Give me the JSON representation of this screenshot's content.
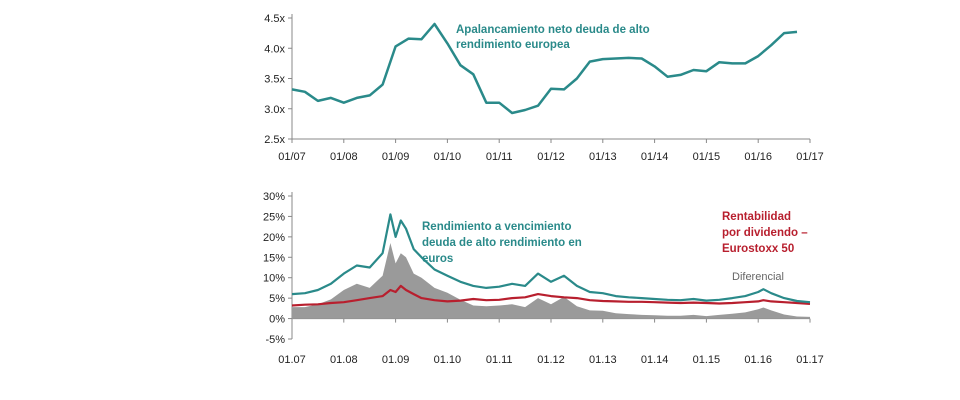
{
  "chart_data": [
    {
      "type": "line",
      "title": "",
      "xlabel": "",
      "ylabel": "",
      "x_tick_labels": [
        "01/07",
        "01/08",
        "01/09",
        "01/10",
        "01/11",
        "01/12",
        "01/13",
        "01/14",
        "01/15",
        "01/16",
        "01/17"
      ],
      "y_tick_labels": [
        "2.5x",
        "3.0x",
        "3.5x",
        "4.0x",
        "4.5x"
      ],
      "ylim": [
        2.5,
        4.5
      ],
      "xlim": [
        2007.0,
        2017.0
      ],
      "grid": false,
      "annotation": [
        "Apalancamiento neto deuda de alto",
        "rendimiento europea"
      ],
      "series": [
        {
          "color": "#2a8a8a",
          "x": [
            2007.0,
            2007.25,
            2007.5,
            2007.75,
            2008.0,
            2008.25,
            2008.5,
            2008.75,
            2009.0,
            2009.25,
            2009.5,
            2009.75,
            2010.0,
            2010.25,
            2010.5,
            2010.75,
            2011.0,
            2011.25,
            2011.5,
            2011.75,
            2012.0,
            2012.25,
            2012.5,
            2012.75,
            2013.0,
            2013.25,
            2013.5,
            2013.75,
            2014.0,
            2014.25,
            2014.5,
            2014.75,
            2015.0,
            2015.25,
            2015.5,
            2015.75,
            2016.0,
            2016.25,
            2016.5,
            2016.75
          ],
          "values": [
            3.32,
            3.28,
            3.13,
            3.18,
            3.1,
            3.18,
            3.22,
            3.4,
            4.03,
            4.16,
            4.15,
            4.4,
            4.08,
            3.72,
            3.57,
            3.1,
            3.1,
            2.93,
            2.98,
            3.05,
            3.33,
            3.32,
            3.5,
            3.78,
            3.82,
            3.83,
            3.84,
            3.83,
            3.7,
            3.53,
            3.56,
            3.64,
            3.62,
            3.77,
            3.75,
            3.75,
            3.87,
            4.05,
            4.25,
            4.27
          ]
        }
      ]
    },
    {
      "type": "area",
      "title": "",
      "xlabel": "",
      "ylabel": "",
      "x_tick_labels": [
        "01.07",
        "01.08",
        "01.09",
        "01.10",
        "01.11",
        "01.12",
        "01.13",
        "01.14",
        "01.15",
        "01.16",
        "01.17"
      ],
      "y_tick_labels": [
        "-5%",
        "0%",
        "5%",
        "10%",
        "15%",
        "20%",
        "25%",
        "30%"
      ],
      "ylim": [
        -5,
        30
      ],
      "xlim": [
        2007.0,
        2017.0
      ],
      "grid": false,
      "x": [
        2007.0,
        2007.25,
        2007.5,
        2007.75,
        2008.0,
        2008.25,
        2008.5,
        2008.75,
        2008.9,
        2009.0,
        2009.1,
        2009.2,
        2009.35,
        2009.5,
        2009.75,
        2010.0,
        2010.25,
        2010.5,
        2010.75,
        2011.0,
        2011.25,
        2011.5,
        2011.75,
        2012.0,
        2012.25,
        2012.5,
        2012.75,
        2013.0,
        2013.25,
        2013.5,
        2013.75,
        2014.0,
        2014.25,
        2014.5,
        2014.75,
        2015.0,
        2015.25,
        2015.5,
        2015.75,
        2016.0,
        2016.1,
        2016.25,
        2016.5,
        2016.75,
        2017.0
      ],
      "series": [
        {
          "name": "Rendimiento a vencimiento deuda de alto rendimiento en euros",
          "color": "#2a8a8a",
          "values": [
            6,
            6.2,
            7,
            8.5,
            11,
            13,
            12.5,
            16,
            25.5,
            20,
            24,
            22,
            17,
            15,
            12,
            10.5,
            9,
            8,
            7.5,
            7.8,
            8.5,
            8,
            11,
            9,
            10.5,
            8,
            6.5,
            6.2,
            5.5,
            5.2,
            5,
            4.8,
            4.6,
            4.5,
            4.8,
            4.4,
            4.6,
            5,
            5.5,
            6.5,
            7.2,
            6.2,
            5,
            4.3,
            4
          ]
        },
        {
          "name": "Rentabilidad por dividendo – Eurostoxx 50",
          "color": "#b81f2e",
          "values": [
            3.2,
            3.4,
            3.5,
            3.8,
            4,
            4.5,
            5,
            5.5,
            7,
            6.5,
            8,
            7,
            6,
            5,
            4.5,
            4.2,
            4.4,
            4.8,
            4.5,
            4.6,
            5,
            5.2,
            6,
            5.5,
            5.2,
            5,
            4.5,
            4.3,
            4.2,
            4.1,
            4.1,
            4,
            3.9,
            3.8,
            3.9,
            3.8,
            3.7,
            3.8,
            4,
            4.2,
            4.5,
            4.2,
            4,
            3.8,
            3.6
          ]
        },
        {
          "name": "Diferencial",
          "color": "#9a9a9a",
          "values": [
            2.8,
            2.8,
            3.5,
            4.7,
            7,
            8.5,
            7.5,
            10.5,
            18.5,
            13.5,
            16,
            15,
            11,
            10,
            7.5,
            6.3,
            4.6,
            3.2,
            3,
            3.2,
            3.5,
            2.8,
            5,
            3.5,
            5.3,
            3,
            2,
            1.9,
            1.3,
            1.1,
            0.9,
            0.8,
            0.7,
            0.7,
            0.9,
            0.6,
            0.9,
            1.2,
            1.5,
            2.3,
            2.7,
            2,
            1,
            0.5,
            0.4
          ]
        }
      ],
      "annotations": {
        "ytm": [
          "Rendimiento a vencimiento",
          "deuda de alto rendimiento en",
          "euros"
        ],
        "dividend": [
          "Rentabilidad",
          "por dividendo  –",
          "Eurostoxx 50"
        ],
        "spread": "Diferencial"
      }
    }
  ]
}
